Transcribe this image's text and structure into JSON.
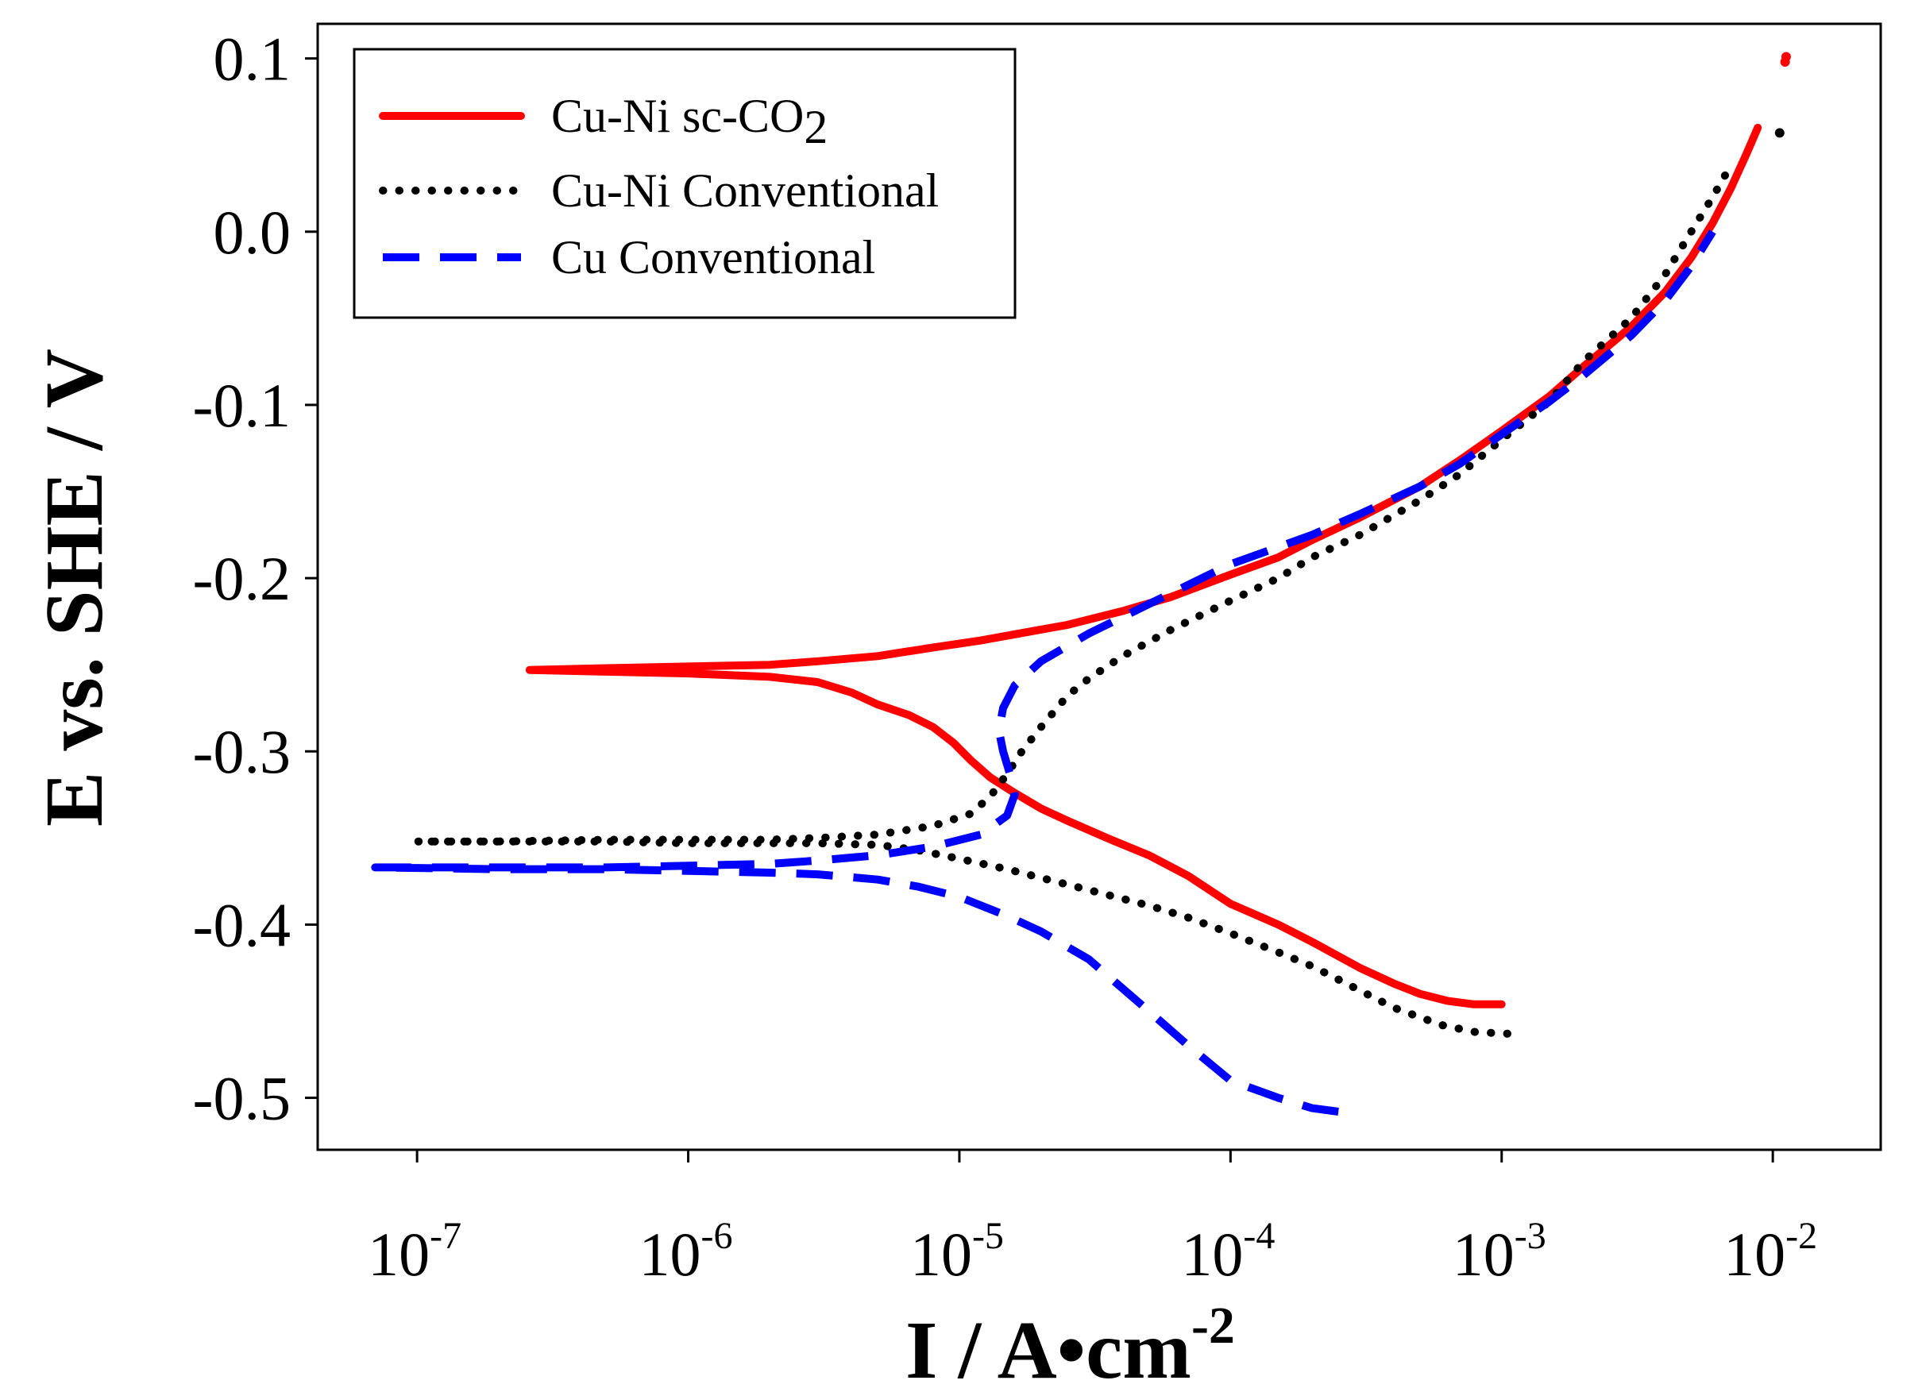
{
  "chart_data": {
    "type": "line",
    "xscale": "log",
    "xlabel": "I / A•cm",
    "xlabel_exponent": "-2",
    "ylabel": "E vs. SHE / V",
    "xlim": [
      4.3e-08,
      0.025
    ],
    "ylim": [
      -0.53,
      0.12
    ],
    "x_ticks": [
      {
        "value": 1e-07,
        "base": "10",
        "exp": "-7"
      },
      {
        "value": 1e-06,
        "base": "10",
        "exp": "-6"
      },
      {
        "value": 1e-05,
        "base": "10",
        "exp": "-5"
      },
      {
        "value": 0.0001,
        "base": "10",
        "exp": "-4"
      },
      {
        "value": 0.001,
        "base": "10",
        "exp": "-3"
      },
      {
        "value": 0.01,
        "base": "10",
        "exp": "-2"
      }
    ],
    "y_ticks": [
      {
        "value": 0.1,
        "label": "0.1"
      },
      {
        "value": 0.0,
        "label": "0.0"
      },
      {
        "value": -0.1,
        "label": "-0.1"
      },
      {
        "value": -0.2,
        "label": "-0.2"
      },
      {
        "value": -0.3,
        "label": "-0.3"
      },
      {
        "value": -0.4,
        "label": "-0.4"
      },
      {
        "value": -0.5,
        "label": "-0.5"
      }
    ],
    "legend_position": "top-left",
    "series": [
      {
        "name": "Cu-Ni sc-CO",
        "name_subscript": "2",
        "color": "#ff0000",
        "style": "solid",
        "points": [
          [
            0.001,
            -0.446
          ],
          [
            0.00079,
            -0.446
          ],
          [
            0.00063,
            -0.444
          ],
          [
            0.0005,
            -0.44
          ],
          [
            0.0004,
            -0.434
          ],
          [
            0.0003,
            -0.425
          ],
          [
            0.0002,
            -0.41
          ],
          [
            0.00015,
            -0.4
          ],
          [
            0.0001,
            -0.388
          ],
          [
            7e-05,
            -0.372
          ],
          [
            5e-05,
            -0.36
          ],
          [
            3.5e-05,
            -0.35
          ],
          [
            2.5e-05,
            -0.34
          ],
          [
            2e-05,
            -0.333
          ],
          [
            1.6e-05,
            -0.324
          ],
          [
            1.3e-05,
            -0.315
          ],
          [
            1.1e-05,
            -0.305
          ],
          [
            9.5e-06,
            -0.295
          ],
          [
            8e-06,
            -0.286
          ],
          [
            6.5e-06,
            -0.279
          ],
          [
            5e-06,
            -0.273
          ],
          [
            4e-06,
            -0.266
          ],
          [
            3e-06,
            -0.26
          ],
          [
            2e-06,
            -0.257
          ],
          [
            1e-06,
            -0.255
          ],
          [
            5e-07,
            -0.254
          ],
          [
            2.6e-07,
            -0.253
          ],
          [
            5e-07,
            -0.252
          ],
          [
            1e-06,
            -0.251
          ],
          [
            2e-06,
            -0.25
          ],
          [
            3e-06,
            -0.248
          ],
          [
            5e-06,
            -0.245
          ],
          [
            8e-06,
            -0.24
          ],
          [
            1.2e-05,
            -0.236
          ],
          [
            1.8e-05,
            -0.231
          ],
          [
            2.5e-05,
            -0.227
          ],
          [
            4e-05,
            -0.219
          ],
          [
            6e-05,
            -0.211
          ],
          [
            0.0001,
            -0.198
          ],
          [
            0.00015,
            -0.188
          ],
          [
            0.0002,
            -0.178
          ],
          [
            0.0003,
            -0.165
          ],
          [
            0.0005,
            -0.147
          ],
          [
            0.0007,
            -0.132
          ],
          [
            0.001,
            -0.115
          ],
          [
            0.0015,
            -0.095
          ],
          [
            0.002,
            -0.078
          ],
          [
            0.003,
            -0.055
          ],
          [
            0.004,
            -0.035
          ],
          [
            0.005,
            -0.015
          ],
          [
            0.006,
            0.005
          ],
          [
            0.007,
            0.025
          ],
          [
            0.008,
            0.045
          ],
          [
            0.0088,
            0.06
          ]
        ],
        "points_extra": [
          [
            0.0111,
            0.098
          ],
          [
            0.0112,
            0.101
          ]
        ]
      },
      {
        "name": "Cu-Ni Conventional",
        "color": "#000000",
        "style": "dotted",
        "points": [
          [
            0.00105,
            -0.463
          ],
          [
            0.0008,
            -0.462
          ],
          [
            0.0006,
            -0.458
          ],
          [
            0.0004,
            -0.448
          ],
          [
            0.0003,
            -0.438
          ],
          [
            0.0002,
            -0.424
          ],
          [
            0.00015,
            -0.416
          ],
          [
            0.0001,
            -0.405
          ],
          [
            7e-05,
            -0.396
          ],
          [
            5e-05,
            -0.389
          ],
          [
            3e-05,
            -0.38
          ],
          [
            2e-05,
            -0.373
          ],
          [
            1.5e-05,
            -0.368
          ],
          [
            1e-05,
            -0.362
          ],
          [
            7e-06,
            -0.357
          ],
          [
            5e-06,
            -0.354
          ],
          [
            3e-06,
            -0.353
          ],
          [
            2e-06,
            -0.353
          ],
          [
            1e-06,
            -0.353
          ],
          [
            5e-07,
            -0.352
          ],
          [
            2e-07,
            -0.352
          ],
          [
            1e-07,
            -0.352
          ],
          [
            2e-07,
            -0.352
          ],
          [
            5e-07,
            -0.351
          ],
          [
            1e-06,
            -0.351
          ],
          [
            2e-06,
            -0.351
          ],
          [
            3e-06,
            -0.35
          ],
          [
            5e-06,
            -0.348
          ],
          [
            8e-06,
            -0.343
          ],
          [
            1.1e-05,
            -0.336
          ],
          [
            1.3e-05,
            -0.326
          ],
          [
            1.5e-05,
            -0.313
          ],
          [
            1.7e-05,
            -0.3
          ],
          [
            2e-05,
            -0.286
          ],
          [
            2.5e-05,
            -0.268
          ],
          [
            3e-05,
            -0.258
          ],
          [
            4e-05,
            -0.245
          ],
          [
            6e-05,
            -0.23
          ],
          [
            0.0001,
            -0.213
          ],
          [
            0.00015,
            -0.2
          ],
          [
            0.0002,
            -0.188
          ],
          [
            0.0003,
            -0.175
          ],
          [
            0.0005,
            -0.155
          ],
          [
            0.0007,
            -0.14
          ],
          [
            0.001,
            -0.12
          ],
          [
            0.0015,
            -0.098
          ],
          [
            0.002,
            -0.075
          ],
          [
            0.003,
            -0.05
          ],
          [
            0.004,
            -0.025
          ],
          [
            0.005,
            0.0
          ],
          [
            0.006,
            0.02
          ],
          [
            0.0071,
            0.04
          ]
        ],
        "points_extra": [
          [
            0.0106,
            0.057
          ]
        ]
      },
      {
        "name": "Cu Conventional",
        "color": "#0000ff",
        "style": "dashed",
        "points": [
          [
            0.00025,
            -0.508
          ],
          [
            0.0002,
            -0.506
          ],
          [
            0.00015,
            -0.5
          ],
          [
            0.0001,
            -0.49
          ],
          [
            7e-05,
            -0.47
          ],
          [
            5e-05,
            -0.45
          ],
          [
            3e-05,
            -0.42
          ],
          [
            2e-05,
            -0.404
          ],
          [
            1.5e-05,
            -0.395
          ],
          [
            1e-05,
            -0.384
          ],
          [
            7e-06,
            -0.378
          ],
          [
            5e-06,
            -0.374
          ],
          [
            3e-06,
            -0.371
          ],
          [
            2e-06,
            -0.37
          ],
          [
            1e-06,
            -0.369
          ],
          [
            5e-07,
            -0.368
          ],
          [
            2e-07,
            -0.368
          ],
          [
            7e-08,
            -0.367
          ],
          [
            2e-07,
            -0.367
          ],
          [
            5e-07,
            -0.367
          ],
          [
            1e-06,
            -0.366
          ],
          [
            2e-06,
            -0.365
          ],
          [
            3e-06,
            -0.363
          ],
          [
            5e-06,
            -0.36
          ],
          [
            8e-06,
            -0.355
          ],
          [
            1.2e-05,
            -0.348
          ],
          [
            1.5e-05,
            -0.337
          ],
          [
            1.6e-05,
            -0.325
          ],
          [
            1.55e-05,
            -0.315
          ],
          [
            1.45e-05,
            -0.3
          ],
          [
            1.4e-05,
            -0.288
          ],
          [
            1.45e-05,
            -0.275
          ],
          [
            1.6e-05,
            -0.262
          ],
          [
            2e-05,
            -0.248
          ],
          [
            3e-05,
            -0.232
          ],
          [
            5e-05,
            -0.215
          ],
          [
            0.0001,
            -0.192
          ],
          [
            0.0002,
            -0.175
          ],
          [
            0.0003,
            -0.163
          ],
          [
            0.0005,
            -0.147
          ],
          [
            0.0007,
            -0.134
          ],
          [
            0.001,
            -0.117
          ],
          [
            0.0015,
            -0.098
          ],
          [
            0.002,
            -0.083
          ],
          [
            0.003,
            -0.06
          ],
          [
            0.004,
            -0.04
          ],
          [
            0.005,
            -0.02
          ],
          [
            0.006,
            0.0
          ]
        ],
        "points_extra": []
      }
    ]
  }
}
